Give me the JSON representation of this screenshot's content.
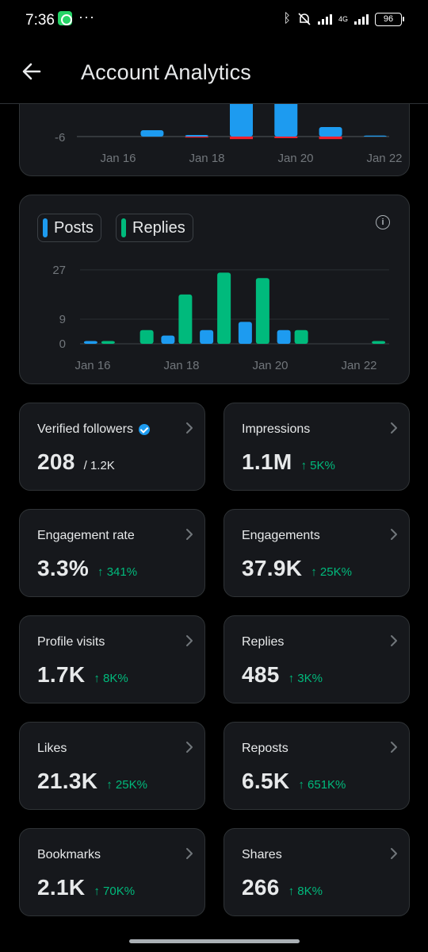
{
  "status_bar": {
    "time": "7:36",
    "dots": "···",
    "network_label": "4G",
    "battery": "96"
  },
  "header": {
    "title": "Account Analytics"
  },
  "chart_data": [
    {
      "type": "bar",
      "note_visible": "top chart partially scrolled",
      "x": [
        "Jan 16",
        "Jan 17",
        "Jan 18",
        "Jan 19",
        "Jan 20",
        "Jan 21",
        "Jan 22"
      ],
      "tick_labels_x": [
        "Jan 16",
        "Jan 18",
        "Jan 20",
        "Jan 22"
      ],
      "tick_labels_y": [
        "-6"
      ],
      "series": [
        {
          "values": [
            0,
            2,
            0.5,
            25,
            25,
            3,
            0.3
          ],
          "color": "#1d9bf0"
        },
        {
          "values": [
            0,
            0,
            -0.3,
            -0.8,
            -0.5,
            -0.8,
            0
          ],
          "color": "#f4212e"
        }
      ]
    },
    {
      "type": "bar",
      "legend": [
        {
          "name": "Posts",
          "color": "#1d9bf0"
        },
        {
          "name": "Replies",
          "color": "#00ba7c"
        }
      ],
      "x": [
        "Jan 15",
        "Jan 16",
        "Jan 17",
        "Jan 18",
        "Jan 19",
        "Jan 20",
        "Jan 21",
        "Jan 22"
      ],
      "tick_labels_x": [
        "Jan 16",
        "Jan 18",
        "Jan 20",
        "Jan 22"
      ],
      "yticks": [
        0,
        9,
        27
      ],
      "ylim": [
        0,
        29
      ],
      "series": [
        {
          "name": "Posts",
          "values": [
            1,
            0,
            3,
            5,
            8,
            5,
            0,
            0
          ]
        },
        {
          "name": "Replies",
          "values": [
            1,
            5,
            18,
            26,
            24,
            5,
            0,
            1
          ]
        }
      ]
    }
  ],
  "stats": [
    {
      "label": "Verified followers",
      "value": "208",
      "total": "/ 1.2K",
      "change": "",
      "verified": true
    },
    {
      "label": "Impressions",
      "value": "1.1M",
      "total": "",
      "change": "↑ 5K%"
    },
    {
      "label": "Engagement rate",
      "value": "3.3%",
      "total": "",
      "change": "↑ 341%"
    },
    {
      "label": "Engagements",
      "value": "37.9K",
      "total": "",
      "change": "↑ 25K%"
    },
    {
      "label": "Profile visits",
      "value": "1.7K",
      "total": "",
      "change": "↑ 8K%"
    },
    {
      "label": "Replies",
      "value": "485",
      "total": "",
      "change": "↑ 3K%"
    },
    {
      "label": "Likes",
      "value": "21.3K",
      "total": "",
      "change": "↑ 25K%"
    },
    {
      "label": "Reposts",
      "value": "6.5K",
      "total": "",
      "change": "↑ 651K%"
    },
    {
      "label": "Bookmarks",
      "value": "2.1K",
      "total": "",
      "change": "↑ 70K%"
    },
    {
      "label": "Shares",
      "value": "266",
      "total": "",
      "change": "↑ 8K%"
    }
  ]
}
